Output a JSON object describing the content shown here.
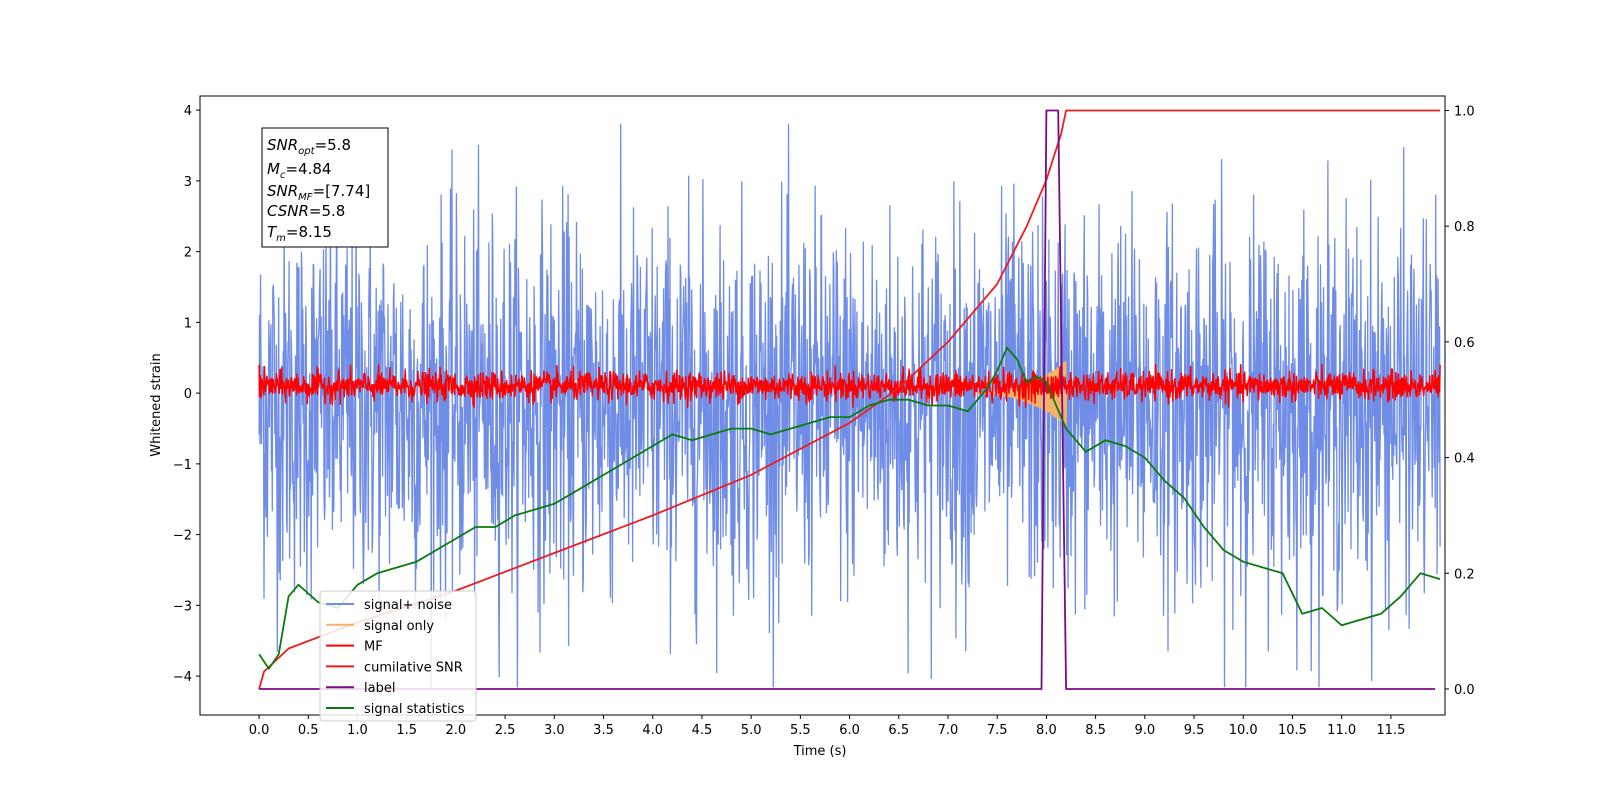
{
  "chart_data": {
    "type": "line",
    "xlabel": "Time (s)",
    "ylabel": "Whitened strain",
    "xlim": [
      -0.6,
      12.05
    ],
    "ylim": [
      -4.55,
      4.2
    ],
    "ylim_right": [
      -0.045,
      1.025
    ],
    "x_ticks": [
      "0.0",
      "0.5",
      "1.0",
      "1.5",
      "2.0",
      "2.5",
      "3.0",
      "3.5",
      "4.0",
      "4.5",
      "5.0",
      "5.5",
      "6.0",
      "6.5",
      "7.0",
      "7.5",
      "8.0",
      "8.5",
      "9.0",
      "9.5",
      "10.0",
      "10.5",
      "11.0",
      "11.5"
    ],
    "y_ticks": [
      "4",
      "3",
      "2",
      "1",
      "0",
      "−1",
      "−2",
      "−3",
      "−4"
    ],
    "y_right_ticks": [
      "1.0",
      "0.8",
      "0.6",
      "0.4",
      "0.2",
      "0.0"
    ],
    "legend_position": "lower-left",
    "annotation": {
      "snr_opt": "=5.8",
      "mc": "=4.84",
      "snr_mf": "=[7.74]",
      "csnr": "=5.8",
      "tm": "=8.15"
    },
    "series": [
      {
        "name": "signal+ noise",
        "axis": "left",
        "color": "#6f8ce6",
        "kind": "noise",
        "x_range": [
          0.0,
          12.0
        ],
        "amplitude_range": [
          -4.15,
          3.8
        ]
      },
      {
        "name": "signal only",
        "axis": "left",
        "color": "#f6b26b",
        "kind": "chirp",
        "x_range": [
          7.3,
          8.2
        ],
        "amplitude_peak": 0.45
      },
      {
        "name": "MF",
        "axis": "left",
        "color": "#ff0000",
        "kind": "noise",
        "x_range": [
          0.0,
          12.0
        ],
        "amplitude_range": [
          -0.2,
          0.4
        ],
        "edge_values": [
          1.0,
          0.85
        ]
      },
      {
        "name": "cumilative SNR",
        "axis": "right",
        "color": "#ee1c1c",
        "x": [
          0.0,
          0.05,
          0.3,
          1.0,
          2.0,
          3.0,
          4.0,
          5.0,
          6.0,
          6.5,
          7.0,
          7.5,
          7.8,
          8.0,
          8.15,
          8.2,
          12.0
        ],
        "y": [
          0.0,
          0.03,
          0.07,
          0.115,
          0.17,
          0.235,
          0.3,
          0.37,
          0.46,
          0.52,
          0.6,
          0.7,
          0.8,
          0.88,
          0.96,
          1.0,
          1.0
        ]
      },
      {
        "name": "label",
        "axis": "right",
        "color": "#7b0a83",
        "x": [
          0.0,
          7.95,
          8.0,
          8.12,
          8.2,
          11.95
        ],
        "y": [
          0.0,
          0.0,
          1.0,
          1.0,
          0.0,
          0.0
        ]
      },
      {
        "name": "signal statistics",
        "axis": "right",
        "color": "#0d7a0d",
        "x": [
          0.0,
          0.1,
          0.2,
          0.3,
          0.4,
          0.5,
          0.6,
          0.8,
          1.0,
          1.2,
          1.4,
          1.6,
          1.8,
          2.0,
          2.2,
          2.4,
          2.6,
          2.8,
          3.0,
          3.2,
          3.4,
          3.6,
          3.8,
          4.0,
          4.2,
          4.4,
          4.6,
          4.8,
          5.0,
          5.2,
          5.4,
          5.6,
          5.8,
          6.0,
          6.2,
          6.4,
          6.6,
          6.8,
          7.0,
          7.2,
          7.4,
          7.5,
          7.6,
          7.7,
          7.8,
          7.9,
          8.0,
          8.1,
          8.2,
          8.4,
          8.6,
          8.8,
          9.0,
          9.2,
          9.4,
          9.6,
          9.8,
          10.0,
          10.2,
          10.4,
          10.6,
          10.8,
          11.0,
          11.2,
          11.4,
          11.6,
          11.8,
          12.0
        ],
        "y": [
          0.06,
          0.035,
          0.06,
          0.16,
          0.18,
          0.165,
          0.15,
          0.14,
          0.18,
          0.2,
          0.21,
          0.22,
          0.24,
          0.26,
          0.28,
          0.28,
          0.3,
          0.31,
          0.32,
          0.34,
          0.36,
          0.38,
          0.4,
          0.42,
          0.44,
          0.43,
          0.44,
          0.45,
          0.45,
          0.44,
          0.45,
          0.46,
          0.47,
          0.47,
          0.49,
          0.5,
          0.5,
          0.49,
          0.49,
          0.48,
          0.52,
          0.55,
          0.59,
          0.57,
          0.53,
          0.54,
          0.53,
          0.49,
          0.45,
          0.41,
          0.43,
          0.42,
          0.4,
          0.36,
          0.33,
          0.28,
          0.24,
          0.22,
          0.21,
          0.2,
          0.13,
          0.14,
          0.11,
          0.12,
          0.13,
          0.16,
          0.2,
          0.19
        ]
      }
    ]
  }
}
